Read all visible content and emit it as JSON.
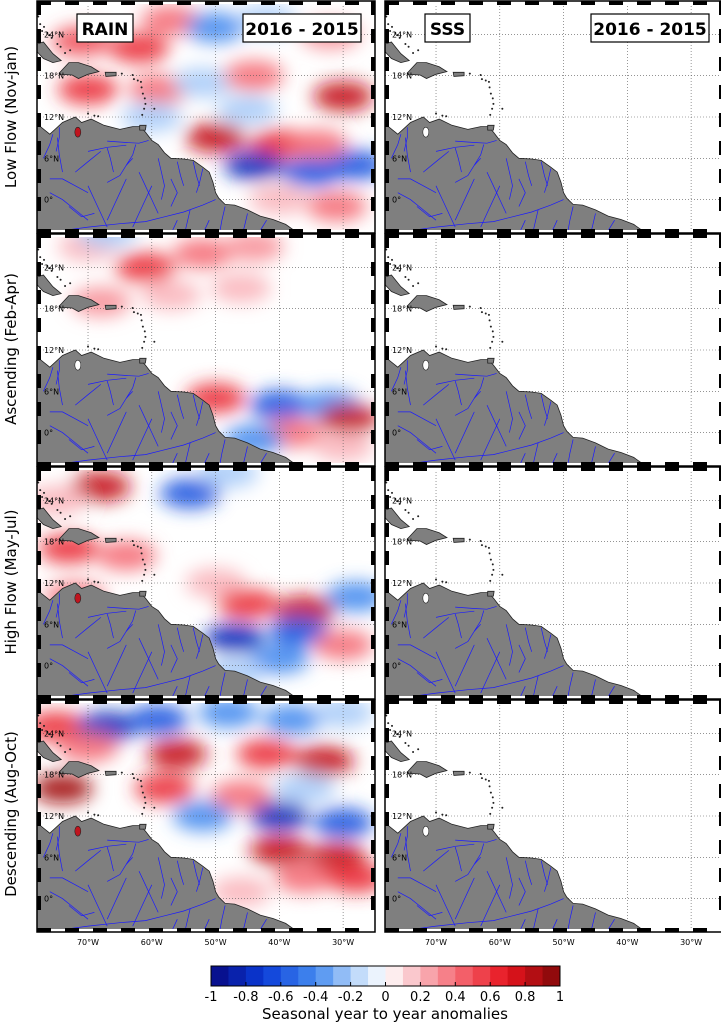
{
  "figure": {
    "panel_label_years": "2016 - 2015",
    "row_labels": [
      "Low Flow (Nov-jan)",
      "Ascending (Feb-Apr)",
      "High Flow (May-Jul)",
      "Descending (Aug-Oct)"
    ],
    "column_labels": [
      "RAIN",
      "SSS"
    ],
    "lat_ticks": [
      "24°N",
      "18°N",
      "12°N",
      "6°N",
      "0°"
    ],
    "lon_ticks": [
      "70°W",
      "60°W",
      "50°W",
      "40°W",
      "30°W"
    ],
    "colorbar": {
      "label": "Seasonal year to year anomalies",
      "ticks": [
        "-1",
        "-0.8",
        "-0.6",
        "-0.4",
        "-0.2",
        "0",
        "0.2",
        "0.4",
        "0.6",
        "0.8",
        "1"
      ],
      "range": [
        -1,
        1
      ]
    },
    "colors": {
      "land": "#7f7f7f",
      "rivers": "#1a1aff",
      "negative": "#0a3cd8",
      "positive": "#e8141e"
    }
  },
  "chart_data": {
    "type": "heatmap",
    "map_extent": {
      "lon": [
        -78,
        -25
      ],
      "lat": [
        -5,
        29
      ]
    },
    "panels": [
      {
        "row": "Low Flow (Nov-jan)",
        "variable": "RAIN",
        "anomalies": [
          {
            "lon": -71,
            "lat": 23,
            "value": 0.5
          },
          {
            "lon": -62,
            "lat": 22,
            "value": 0.6
          },
          {
            "lon": -57,
            "lat": 26,
            "value": 0.4
          },
          {
            "lon": -50,
            "lat": 25,
            "value": -0.4
          },
          {
            "lon": -42,
            "lat": 26,
            "value": -0.2
          },
          {
            "lon": -32,
            "lat": 24,
            "value": 0.3
          },
          {
            "lon": -70,
            "lat": 16,
            "value": 0.6
          },
          {
            "lon": -59,
            "lat": 16,
            "value": 0.4
          },
          {
            "lon": -52,
            "lat": 17,
            "value": -0.2
          },
          {
            "lon": -44,
            "lat": 18,
            "value": 0.4
          },
          {
            "lon": -30,
            "lat": 15,
            "value": 0.8
          },
          {
            "lon": -45,
            "lat": 13,
            "value": -0.2
          },
          {
            "lon": -50,
            "lat": 9,
            "value": 0.8
          },
          {
            "lon": -40,
            "lat": 8,
            "value": 0.6
          },
          {
            "lon": -34,
            "lat": 8,
            "value": 0.4
          },
          {
            "lon": -44,
            "lat": 5,
            "value": -0.8
          },
          {
            "lon": -35,
            "lat": 4,
            "value": -0.6
          },
          {
            "lon": -28,
            "lat": 5,
            "value": -0.6
          },
          {
            "lon": -40,
            "lat": 0,
            "value": 0.2
          },
          {
            "lon": -31,
            "lat": -1,
            "value": 0.4
          },
          {
            "lon": -60,
            "lat": 12,
            "value": -0.2
          }
        ]
      },
      {
        "row": "Low Flow (Nov-jan)",
        "variable": "SSS",
        "anomalies": []
      },
      {
        "row": "Ascending (Feb-Apr)",
        "variable": "RAIN",
        "anomalies": [
          {
            "lon": -70,
            "lat": 27,
            "value": 0.2
          },
          {
            "lon": -61,
            "lat": 24,
            "value": 0.6
          },
          {
            "lon": -52,
            "lat": 26,
            "value": 0.4
          },
          {
            "lon": -44,
            "lat": 27,
            "value": 0.3
          },
          {
            "lon": -68,
            "lat": 19,
            "value": 0.3
          },
          {
            "lon": -57,
            "lat": 20,
            "value": 0.2
          },
          {
            "lon": -46,
            "lat": 21,
            "value": 0.2
          },
          {
            "lon": -50,
            "lat": 5,
            "value": 0.6
          },
          {
            "lon": -40,
            "lat": 4,
            "value": -0.6
          },
          {
            "lon": -32,
            "lat": 4,
            "value": -0.4
          },
          {
            "lon": -29,
            "lat": 2,
            "value": 0.8
          },
          {
            "lon": -38,
            "lat": 0,
            "value": 0.4
          },
          {
            "lon": -44,
            "lat": -1,
            "value": -0.4
          },
          {
            "lon": -30,
            "lat": -2,
            "value": 0.2
          },
          {
            "lon": -67,
            "lat": 29,
            "value": -0.2
          }
        ]
      },
      {
        "row": "Ascending (Feb-Apr)",
        "variable": "SSS",
        "anomalies": []
      },
      {
        "row": "High Flow (May-Jul)",
        "variable": "RAIN",
        "anomalies": [
          {
            "lon": -68,
            "lat": 26,
            "value": 0.8
          },
          {
            "lon": -75,
            "lat": 24,
            "value": 0.2
          },
          {
            "lon": -54,
            "lat": 25,
            "value": -0.6
          },
          {
            "lon": -48,
            "lat": 28,
            "value": -0.2
          },
          {
            "lon": -73,
            "lat": 17,
            "value": 0.6
          },
          {
            "lon": -64,
            "lat": 16,
            "value": 0.4
          },
          {
            "lon": -50,
            "lat": 12,
            "value": 0.2
          },
          {
            "lon": -45,
            "lat": 9,
            "value": 0.6
          },
          {
            "lon": -36,
            "lat": 8,
            "value": 0.8
          },
          {
            "lon": -28,
            "lat": 10,
            "value": -0.4
          },
          {
            "lon": -47,
            "lat": 4,
            "value": -0.8
          },
          {
            "lon": -37,
            "lat": 5,
            "value": -0.6
          },
          {
            "lon": -30,
            "lat": 3,
            "value": 0.4
          },
          {
            "lon": -40,
            "lat": 1,
            "value": -0.4
          },
          {
            "lon": -47,
            "lat": -1,
            "value": -0.2
          },
          {
            "lon": -72,
            "lat": 10,
            "value": 0.4
          }
        ]
      },
      {
        "row": "High Flow (May-Jul)",
        "variable": "SSS",
        "anomalies": []
      },
      {
        "row": "Descending (Aug-Oct)",
        "variable": "RAIN",
        "anomalies": [
          {
            "lon": -75,
            "lat": 25,
            "value": 0.6
          },
          {
            "lon": -67,
            "lat": 25,
            "value": -0.8
          },
          {
            "lon": -59,
            "lat": 26,
            "value": -0.6
          },
          {
            "lon": -48,
            "lat": 27,
            "value": -0.4
          },
          {
            "lon": -38,
            "lat": 26,
            "value": -0.4
          },
          {
            "lon": -30,
            "lat": 27,
            "value": -0.2
          },
          {
            "lon": -70,
            "lat": 22,
            "value": 0.4
          },
          {
            "lon": -56,
            "lat": 21,
            "value": 0.8
          },
          {
            "lon": -42,
            "lat": 21,
            "value": 0.6
          },
          {
            "lon": -33,
            "lat": 20,
            "value": 0.8
          },
          {
            "lon": -74,
            "lat": 16,
            "value": 0.9
          },
          {
            "lon": -58,
            "lat": 16,
            "value": 0.6
          },
          {
            "lon": -46,
            "lat": 15,
            "value": 0.4
          },
          {
            "lon": -36,
            "lat": 16,
            "value": -0.2
          },
          {
            "lon": -52,
            "lat": 12,
            "value": -0.4
          },
          {
            "lon": -40,
            "lat": 12,
            "value": -0.8
          },
          {
            "lon": -30,
            "lat": 11,
            "value": -0.6
          },
          {
            "lon": -40,
            "lat": 7,
            "value": 0.8
          },
          {
            "lon": -31,
            "lat": 6,
            "value": 0.8
          },
          {
            "lon": -36,
            "lat": 3,
            "value": 0.4
          },
          {
            "lon": -46,
            "lat": 1,
            "value": 0.2
          },
          {
            "lon": -28,
            "lat": 3,
            "value": 0.6
          }
        ]
      },
      {
        "row": "Descending (Aug-Oct)",
        "variable": "SSS",
        "anomalies": []
      }
    ]
  }
}
